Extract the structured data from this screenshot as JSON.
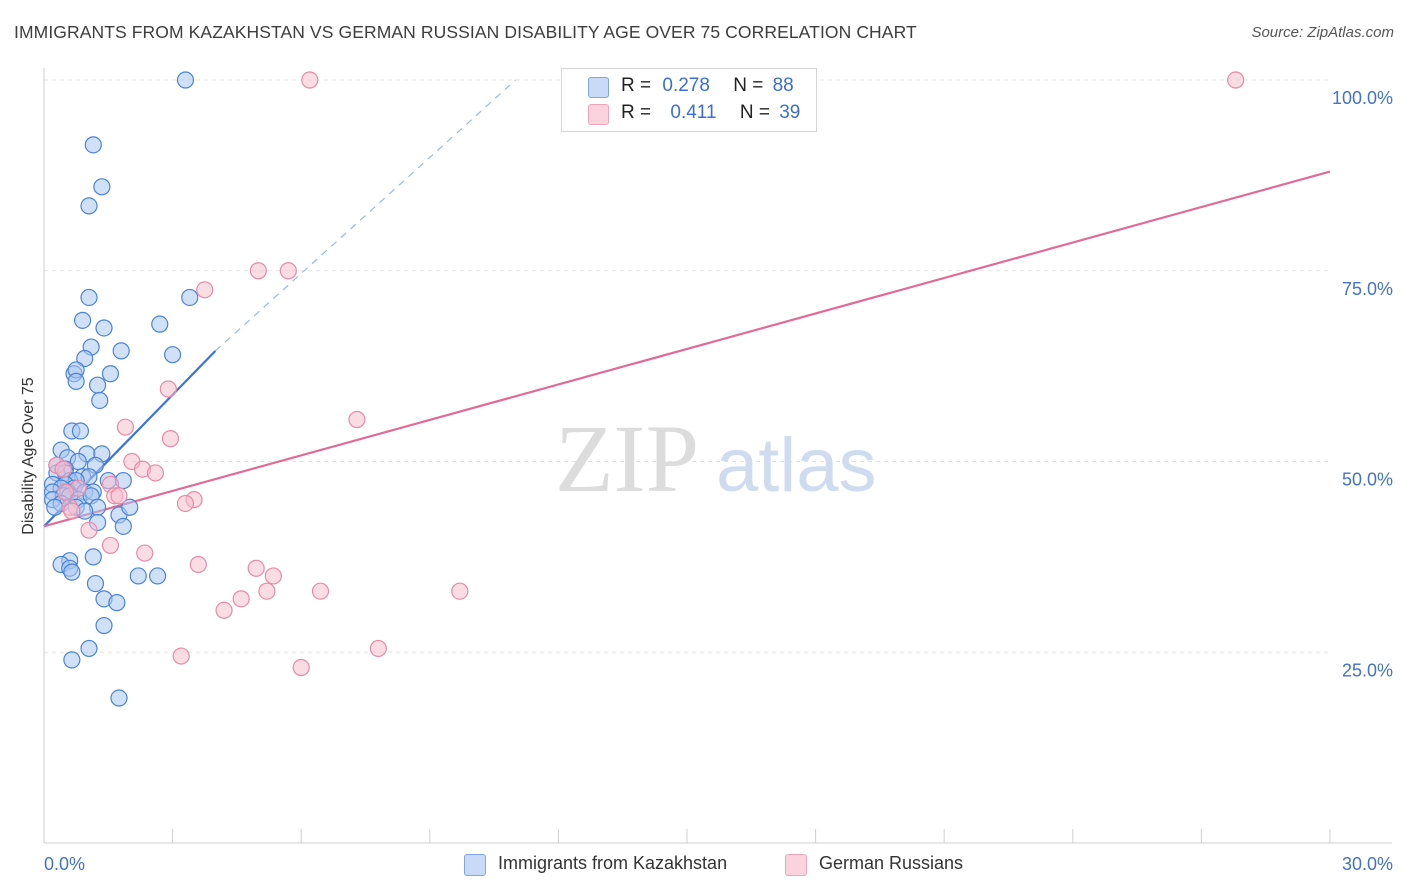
{
  "header": {
    "title": "IMMIGRANTS FROM KAZAKHSTAN VS GERMAN RUSSIAN DISABILITY AGE OVER 75 CORRELATION CHART",
    "source": "Source: ZipAtlas.com"
  },
  "watermark": {
    "zip": "ZIP",
    "atlas": "atlas"
  },
  "legend": {
    "r_label": "R =",
    "n_label": "N =",
    "series1": {
      "r": "0.278",
      "n": "88"
    },
    "series2": {
      "r": "0.411",
      "n": "39"
    }
  },
  "bottom_legend": {
    "series1": "Immigrants from Kazakhstan",
    "series2": "German Russians"
  },
  "colors": {
    "blue_fill": "#a9c6f0",
    "blue_stroke": "#4a83d9",
    "blue_line": "#3a74d6",
    "pink_fill": "#f6bfd0",
    "pink_stroke": "#e88aa8",
    "pink_line": "#e06b95",
    "grid": "#e3e3e3",
    "tick_text": "#4472c4"
  },
  "chart_data": {
    "type": "scatter",
    "title": "IMMIGRANTS FROM KAZAKHSTAN VS GERMAN RUSSIAN DISABILITY AGE OVER 75 CORRELATION CHART",
    "xlabel": "",
    "ylabel": "Disability Age Over 75",
    "xlim": [
      0,
      30
    ],
    "ylim": [
      0,
      100
    ],
    "x_tick_labels": [
      "0.0%",
      "30.0%"
    ],
    "y_ticks": [
      25,
      50,
      75,
      100
    ],
    "y_tick_labels": [
      "25.0%",
      "50.0%",
      "75.0%",
      "100.0%"
    ],
    "grid": true,
    "legend_position": "top-center",
    "series": [
      {
        "name": "Immigrants from Kazakhstan",
        "r": 0.278,
        "n": 88,
        "trend": {
          "x": [
            0.0,
            4.0
          ],
          "y": [
            41.5,
            64.5
          ],
          "dashed_extension_to": [
            11.0,
            100.0
          ]
        },
        "points": [
          [
            3.3,
            100
          ],
          [
            1.15,
            91.5
          ],
          [
            1.35,
            86
          ],
          [
            1.05,
            83.5
          ],
          [
            1.05,
            71.5
          ],
          [
            3.4,
            71.5
          ],
          [
            0.9,
            68.5
          ],
          [
            1.4,
            67.5
          ],
          [
            2.7,
            68
          ],
          [
            1.1,
            65
          ],
          [
            1.8,
            64.5
          ],
          [
            0.95,
            63.5
          ],
          [
            3.0,
            64
          ],
          [
            0.7,
            61.5
          ],
          [
            0.75,
            62
          ],
          [
            1.55,
            61.5
          ],
          [
            0.75,
            60.5
          ],
          [
            1.25,
            60
          ],
          [
            1.3,
            58
          ],
          [
            0.65,
            54
          ],
          [
            0.85,
            54
          ],
          [
            0.4,
            51.5
          ],
          [
            1.0,
            51
          ],
          [
            1.35,
            51
          ],
          [
            0.55,
            50.5
          ],
          [
            0.8,
            50
          ],
          [
            0.3,
            49.5
          ],
          [
            0.5,
            49
          ],
          [
            1.2,
            49.5
          ],
          [
            0.3,
            48.5
          ],
          [
            0.5,
            48.5
          ],
          [
            0.9,
            48
          ],
          [
            1.05,
            48
          ],
          [
            0.6,
            47.5
          ],
          [
            0.75,
            47.5
          ],
          [
            1.5,
            47.5
          ],
          [
            1.85,
            47.5
          ],
          [
            0.2,
            47
          ],
          [
            0.5,
            47
          ],
          [
            0.4,
            46.5
          ],
          [
            0.7,
            46.5
          ],
          [
            0.2,
            46
          ],
          [
            0.55,
            46
          ],
          [
            0.95,
            46
          ],
          [
            1.15,
            46
          ],
          [
            0.45,
            45.5
          ],
          [
            0.6,
            45.5
          ],
          [
            0.2,
            45
          ],
          [
            0.8,
            45
          ],
          [
            1.1,
            45.5
          ],
          [
            0.4,
            44.5
          ],
          [
            0.75,
            44
          ],
          [
            0.25,
            44
          ],
          [
            1.25,
            44
          ],
          [
            0.95,
            43.5
          ],
          [
            1.75,
            43
          ],
          [
            2.0,
            44
          ],
          [
            1.25,
            42
          ],
          [
            1.85,
            41.5
          ],
          [
            1.15,
            37.5
          ],
          [
            0.6,
            37
          ],
          [
            0.4,
            36.5
          ],
          [
            0.6,
            36
          ],
          [
            0.65,
            35.5
          ],
          [
            2.2,
            35
          ],
          [
            2.65,
            35
          ],
          [
            1.2,
            34
          ],
          [
            1.4,
            32
          ],
          [
            1.7,
            31.5
          ],
          [
            1.4,
            28.5
          ],
          [
            1.05,
            25.5
          ],
          [
            0.65,
            24
          ],
          [
            1.75,
            19
          ]
        ]
      },
      {
        "name": "German Russians",
        "r": 0.411,
        "n": 39,
        "trend": {
          "x": [
            0.0,
            30.0
          ],
          "y": [
            41.5,
            88.0
          ]
        },
        "points": [
          [
            6.2,
            100
          ],
          [
            27.8,
            100
          ],
          [
            5.0,
            75
          ],
          [
            5.7,
            75
          ],
          [
            3.75,
            72.5
          ],
          [
            2.9,
            59.5
          ],
          [
            7.3,
            55.5
          ],
          [
            1.9,
            54.5
          ],
          [
            2.95,
            53
          ],
          [
            2.05,
            50
          ],
          [
            0.3,
            49.5
          ],
          [
            0.45,
            49
          ],
          [
            2.3,
            49
          ],
          [
            2.6,
            48.5
          ],
          [
            1.55,
            47
          ],
          [
            0.8,
            46.5
          ],
          [
            0.5,
            46
          ],
          [
            1.65,
            45.5
          ],
          [
            1.75,
            45.5
          ],
          [
            3.5,
            45
          ],
          [
            3.3,
            44.5
          ],
          [
            0.6,
            44
          ],
          [
            0.65,
            43.5
          ],
          [
            1.05,
            41
          ],
          [
            1.55,
            39
          ],
          [
            2.35,
            38
          ],
          [
            3.6,
            36.5
          ],
          [
            4.95,
            36
          ],
          [
            5.35,
            35
          ],
          [
            6.45,
            33
          ],
          [
            9.7,
            33
          ],
          [
            5.2,
            33
          ],
          [
            4.6,
            32
          ],
          [
            4.2,
            30.5
          ],
          [
            7.8,
            25.5
          ],
          [
            3.2,
            24.5
          ],
          [
            6.0,
            23
          ]
        ]
      }
    ]
  }
}
